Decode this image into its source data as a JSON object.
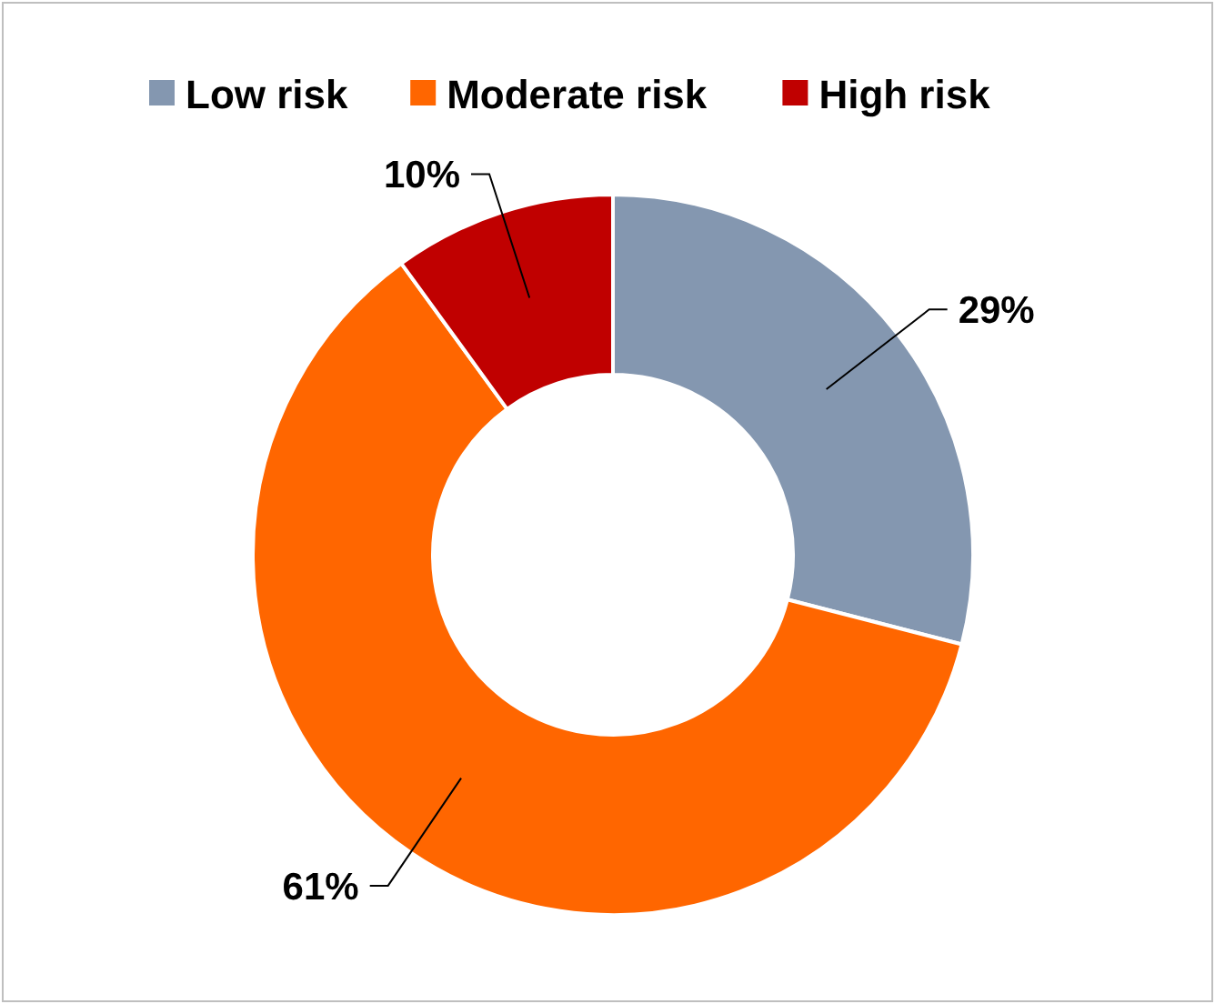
{
  "chart_data": {
    "type": "donut",
    "categories": [
      "Low risk",
      "Moderate risk",
      "High risk"
    ],
    "values": [
      29,
      61,
      10
    ],
    "colors": [
      "#8497b0",
      "#ff6600",
      "#c00000"
    ],
    "value_labels": [
      "29%",
      "61%",
      "10%"
    ],
    "legend": "top"
  }
}
